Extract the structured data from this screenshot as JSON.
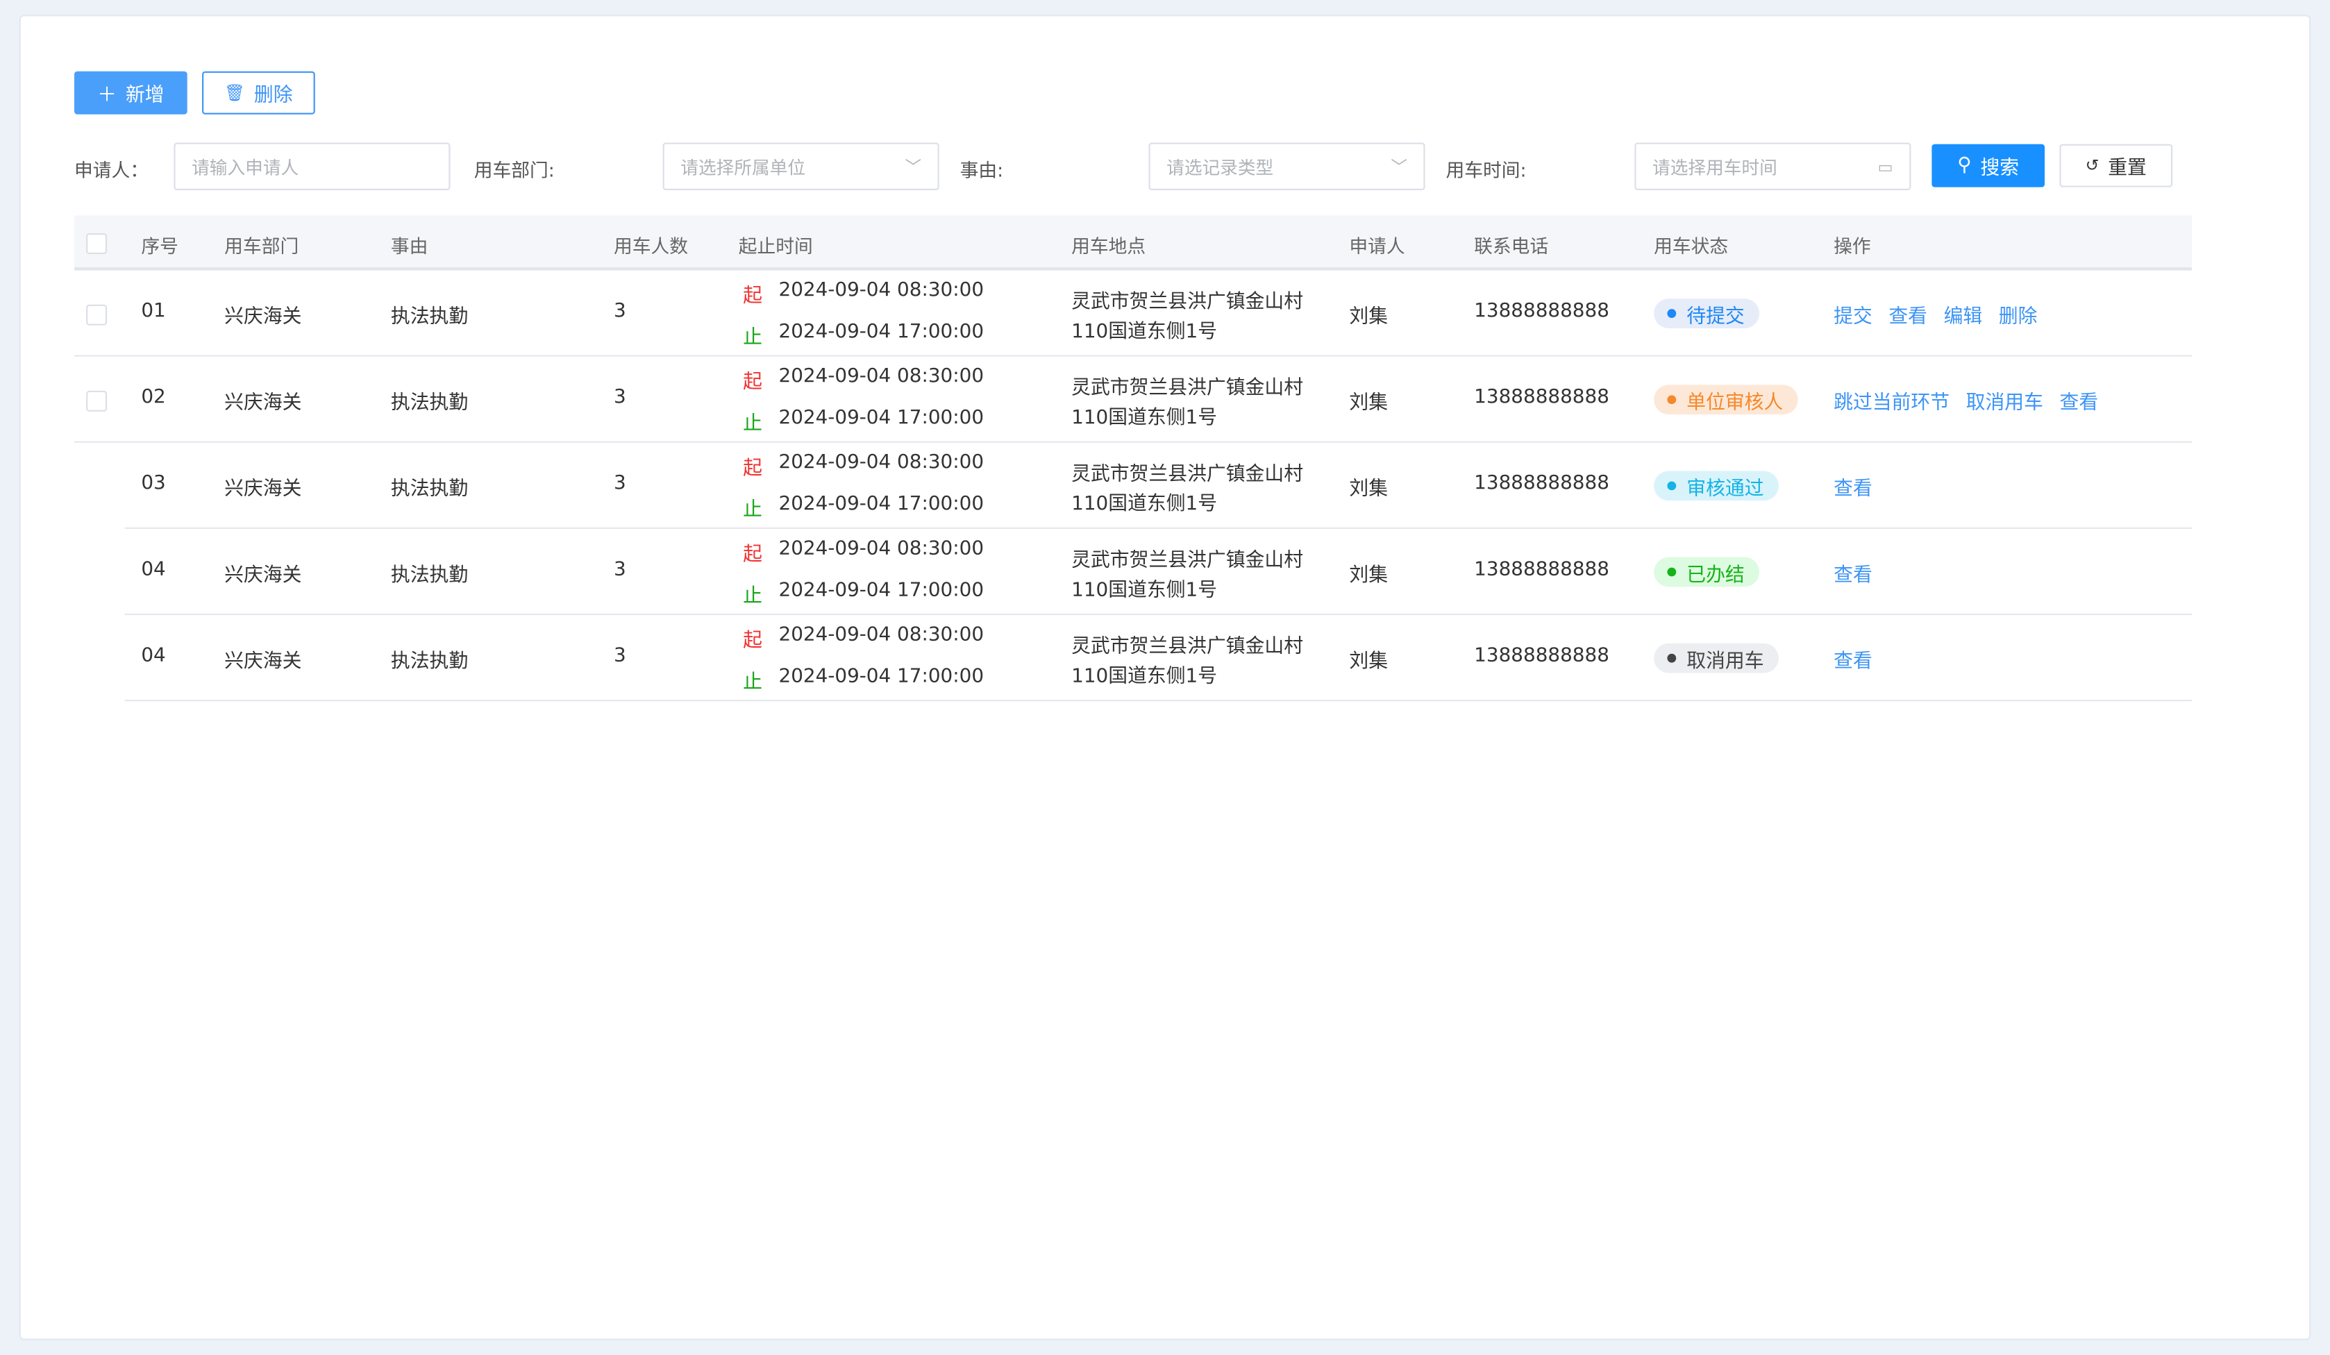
{
  "toolbar": {
    "add_label": "新增",
    "delete_label": "删除"
  },
  "filters": {
    "applicant_label": "申请人：",
    "applicant_placeholder": "请输入申请人",
    "dept_label": "用车部门:",
    "dept_placeholder": "请选择所属单位",
    "reason_label": "事由:",
    "reason_placeholder": "请选记录类型",
    "time_label": "用车时间:",
    "time_placeholder": "请选择用车时间",
    "search_label": "搜索",
    "reset_label": "重置"
  },
  "table": {
    "headers": [
      "序号",
      "用车部门",
      "事由",
      "用车人数",
      "起止时间",
      "用车地点",
      "申请人",
      "联系电话",
      "用车状态",
      "操作"
    ],
    "start_mark": "起",
    "end_mark": "止",
    "rows": [
      {
        "no": "01",
        "dept": "兴庆海关",
        "reason": "执法执勤",
        "count": "3",
        "start": "2024-09-04 08:30:00",
        "end": "2024-09-04 17:00:00",
        "place1": "灵武市贺兰县洪广镇金山村",
        "place2": "110国道东侧1号",
        "applicant": "刘集",
        "phone": "13888888888",
        "status": "待提交",
        "status_color": "#1e88f5",
        "status_bg": "#e6ecf8",
        "actions": [
          "提交",
          "查看",
          "编辑",
          "删除"
        ],
        "checkbox": true
      },
      {
        "no": "02",
        "dept": "兴庆海关",
        "reason": "执法执勤",
        "count": "3",
        "start": "2024-09-04 08:30:00",
        "end": "2024-09-04 17:00:00",
        "place1": "灵武市贺兰县洪广镇金山村",
        "place2": "110国道东侧1号",
        "applicant": "刘集",
        "phone": "13888888888",
        "status": "单位审核人",
        "status_color": "#f5892a",
        "status_bg": "#fde8d8",
        "actions": [
          "跳过当前环节",
          "取消用车",
          "查看"
        ],
        "checkbox": true
      },
      {
        "no": "03",
        "dept": "兴庆海关",
        "reason": "执法执勤",
        "count": "3",
        "start": "2024-09-04 08:30:00",
        "end": "2024-09-04 17:00:00",
        "place1": "灵武市贺兰县洪广镇金山村",
        "place2": "110国道东侧1号",
        "applicant": "刘集",
        "phone": "13888888888",
        "status": "审核通过",
        "status_color": "#14b3e6",
        "status_bg": "#d9f3fa",
        "actions": [
          "查看"
        ],
        "checkbox": false
      },
      {
        "no": "04",
        "dept": "兴庆海关",
        "reason": "执法执勤",
        "count": "3",
        "start": "2024-09-04 08:30:00",
        "end": "2024-09-04 17:00:00",
        "place1": "灵武市贺兰县洪广镇金山村",
        "place2": "110国道东侧1号",
        "applicant": "刘集",
        "phone": "13888888888",
        "status": "已办结",
        "status_color": "#17b21a",
        "status_bg": "#ddfbe0",
        "actions": [
          "查看"
        ],
        "checkbox": false
      },
      {
        "no": "04",
        "dept": "兴庆海关",
        "reason": "执法执勤",
        "count": "3",
        "start": "2024-09-04 08:30:00",
        "end": "2024-09-04 17:00:00",
        "place1": "灵武市贺兰县洪广镇金山村",
        "place2": "110国道东侧1号",
        "applicant": "刘集",
        "phone": "13888888888",
        "status": "取消用车",
        "status_color": "#444444",
        "status_bg": "#eceef2",
        "actions": [
          "查看"
        ],
        "checkbox": false
      }
    ]
  }
}
